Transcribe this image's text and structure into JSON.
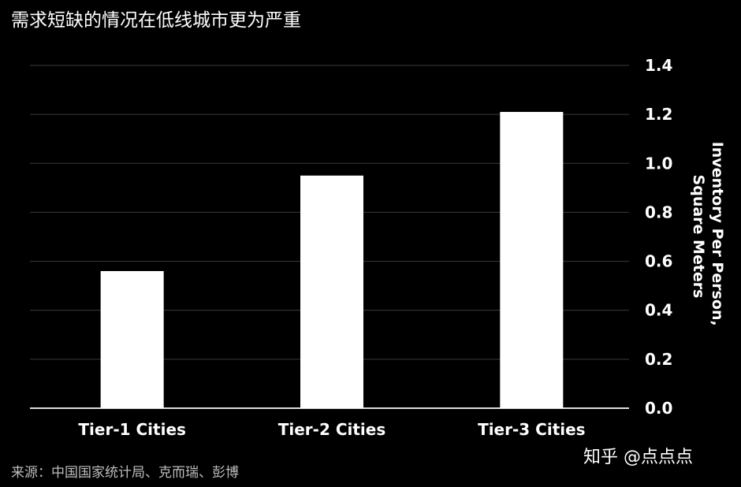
{
  "title": "需求短缺的情况在低线城市更为严重",
  "source": "来源：中国国家统计局、克而瑞、彭博",
  "watermark": "知乎 @点点点",
  "colors": {
    "background": "#000000",
    "bars": "#ffffff",
    "grid": "#3a3a3a",
    "text": "#ffffff",
    "source_text": "#bdbdbd"
  },
  "chart_data": {
    "type": "bar",
    "categories": [
      "Tier-1 Cities",
      "Tier-2 Cities",
      "Tier-3 Cities"
    ],
    "values": [
      0.56,
      0.95,
      1.21
    ],
    "ylabel": "Inventory Per Person, Square Meters",
    "ylabel_lines": [
      "Inventory Per Person,",
      "Square Meters"
    ],
    "ylim": [
      0,
      1.4
    ],
    "yticks": [
      "0.0",
      "0.2",
      "0.4",
      "0.6",
      "0.8",
      "1.0",
      "1.2",
      "1.4"
    ],
    "y_axis_side": "right",
    "grid": true,
    "legend": "none"
  }
}
